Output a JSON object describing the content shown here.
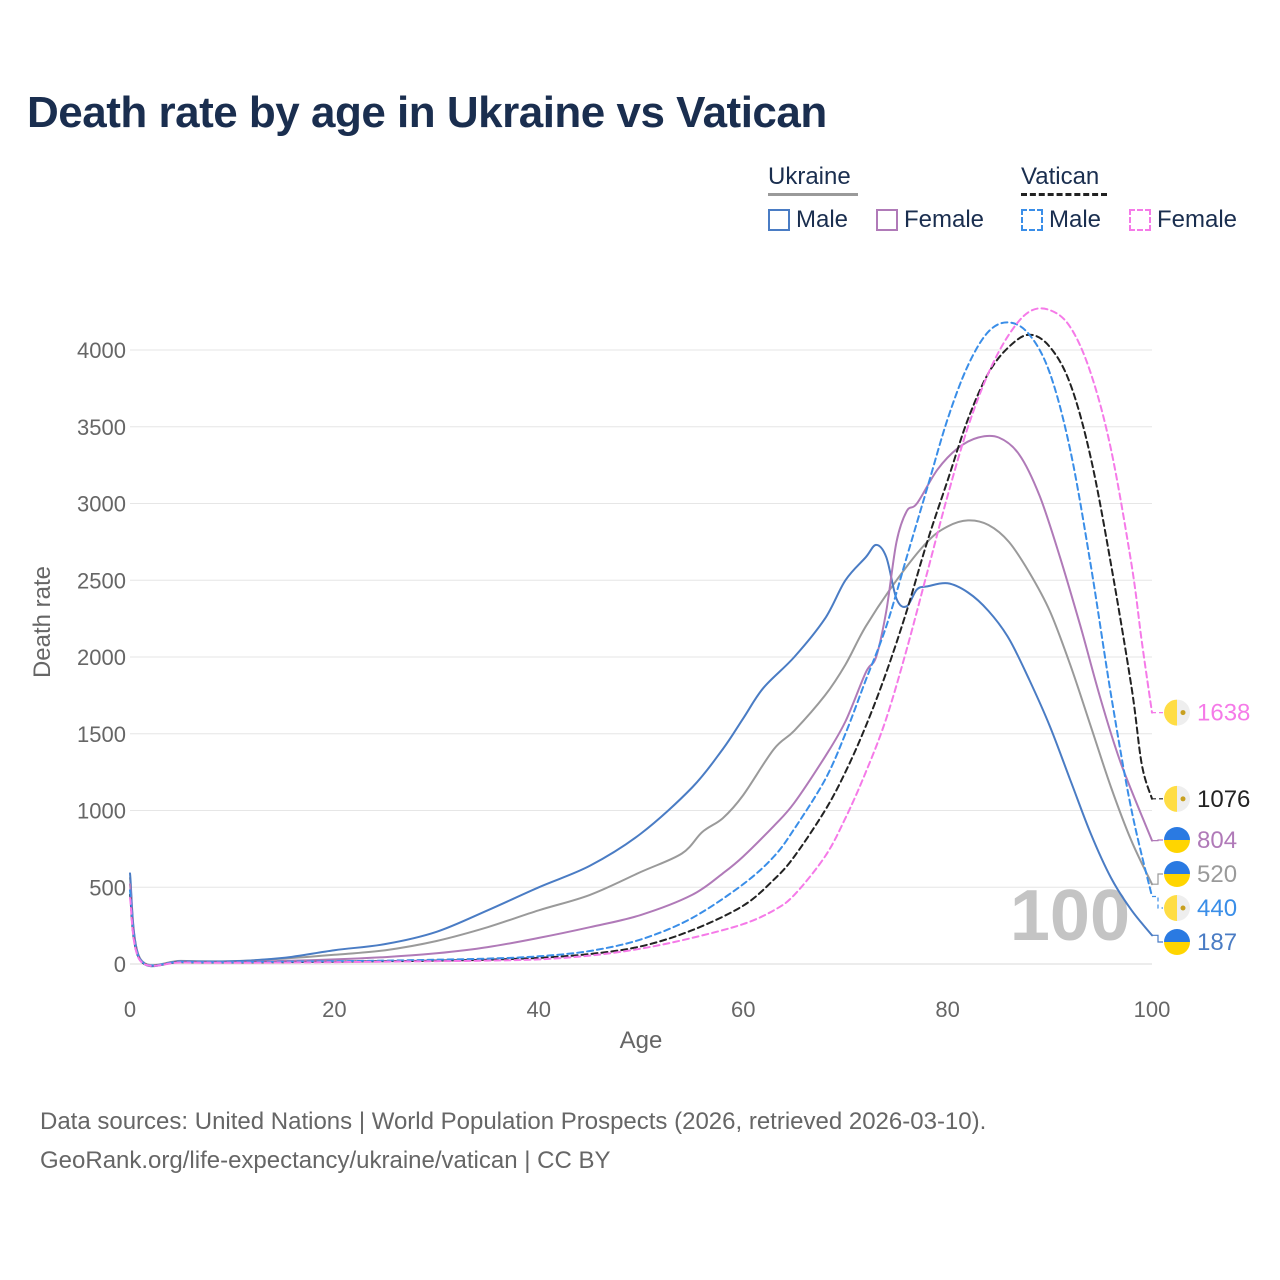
{
  "title": "Death rate by age in Ukraine vs Vatican",
  "legend": {
    "groups": [
      {
        "name": "Ukraine",
        "items": [
          {
            "label": "Male",
            "series": "ua_male"
          },
          {
            "label": "Female",
            "series": "ua_female"
          }
        ]
      },
      {
        "name": "Vatican",
        "items": [
          {
            "label": "Male",
            "series": "va_male"
          },
          {
            "label": "Female",
            "series": "va_female"
          }
        ]
      }
    ]
  },
  "colors": {
    "ua_male": "#4a7cc4",
    "ua_female": "#b07ab8",
    "ua_total": "#9a9a9a",
    "va_male": "#3a8ee8",
    "va_female": "#f57ae8",
    "va_total": "#222222",
    "title": "#1a2e4f",
    "axis_text": "#666666",
    "grid": "#e6e6e6",
    "flag_ukraine_top": "#2a7ae2",
    "flag_ukraine_bottom": "#ffd500",
    "flag_vatican_left": "#ffdd44",
    "flag_vatican_right": "#eeeeee"
  },
  "chart_data": {
    "type": "line",
    "title": "Death rate by age in Ukraine vs Vatican",
    "xlabel": "Age",
    "ylabel": "Death rate",
    "xlim": [
      0,
      100
    ],
    "ylim": [
      0,
      4000
    ],
    "x_ticks": [
      0,
      20,
      40,
      60,
      80,
      100
    ],
    "y_ticks": [
      0,
      500,
      1000,
      1500,
      2000,
      2500,
      3000,
      3500,
      4000
    ],
    "annotation": "100",
    "series": [
      {
        "id": "ua_total",
        "name": "Ukraine (total)",
        "style": "solid",
        "points": [
          [
            0,
            560
          ],
          [
            1,
            35
          ],
          [
            5,
            20
          ],
          [
            10,
            18
          ],
          [
            15,
            35
          ],
          [
            20,
            60
          ],
          [
            25,
            90
          ],
          [
            30,
            150
          ],
          [
            35,
            240
          ],
          [
            40,
            350
          ],
          [
            45,
            450
          ],
          [
            50,
            600
          ],
          [
            54,
            720
          ],
          [
            56,
            860
          ],
          [
            58,
            950
          ],
          [
            60,
            1100
          ],
          [
            63,
            1400
          ],
          [
            65,
            1520
          ],
          [
            68,
            1750
          ],
          [
            70,
            1950
          ],
          [
            72,
            2200
          ],
          [
            75,
            2500
          ],
          [
            78,
            2750
          ],
          [
            80,
            2850
          ],
          [
            82,
            2890
          ],
          [
            84,
            2860
          ],
          [
            86,
            2750
          ],
          [
            88,
            2550
          ],
          [
            90,
            2300
          ],
          [
            92,
            1950
          ],
          [
            94,
            1550
          ],
          [
            96,
            1150
          ],
          [
            98,
            800
          ],
          [
            100,
            520
          ]
        ],
        "end_label": "520",
        "end_flag": "ukraine"
      },
      {
        "id": "ua_male",
        "name": "Ukraine Male",
        "style": "solid",
        "points": [
          [
            0,
            590
          ],
          [
            1,
            30
          ],
          [
            5,
            18
          ],
          [
            10,
            18
          ],
          [
            15,
            40
          ],
          [
            20,
            90
          ],
          [
            25,
            130
          ],
          [
            30,
            210
          ],
          [
            35,
            350
          ],
          [
            40,
            500
          ],
          [
            45,
            640
          ],
          [
            50,
            850
          ],
          [
            55,
            1150
          ],
          [
            58,
            1400
          ],
          [
            60,
            1600
          ],
          [
            62,
            1800
          ],
          [
            65,
            2000
          ],
          [
            68,
            2250
          ],
          [
            70,
            2500
          ],
          [
            72,
            2650
          ],
          [
            73,
            2730
          ],
          [
            74,
            2650
          ],
          [
            75,
            2380
          ],
          [
            76,
            2330
          ],
          [
            77,
            2440
          ],
          [
            78,
            2460
          ],
          [
            80,
            2480
          ],
          [
            82,
            2420
          ],
          [
            84,
            2300
          ],
          [
            86,
            2120
          ],
          [
            88,
            1850
          ],
          [
            90,
            1550
          ],
          [
            92,
            1200
          ],
          [
            94,
            850
          ],
          [
            96,
            560
          ],
          [
            98,
            350
          ],
          [
            100,
            187
          ]
        ],
        "end_label": "187",
        "end_flag": "ukraine"
      },
      {
        "id": "ua_female",
        "name": "Ukraine Female",
        "style": "solid",
        "points": [
          [
            0,
            520
          ],
          [
            1,
            28
          ],
          [
            5,
            15
          ],
          [
            10,
            12
          ],
          [
            15,
            20
          ],
          [
            20,
            30
          ],
          [
            25,
            45
          ],
          [
            30,
            70
          ],
          [
            35,
            110
          ],
          [
            40,
            170
          ],
          [
            45,
            240
          ],
          [
            50,
            320
          ],
          [
            55,
            450
          ],
          [
            58,
            590
          ],
          [
            60,
            700
          ],
          [
            63,
            900
          ],
          [
            65,
            1050
          ],
          [
            68,
            1350
          ],
          [
            70,
            1580
          ],
          [
            72,
            1900
          ],
          [
            73,
            2000
          ],
          [
            74,
            2300
          ],
          [
            75,
            2750
          ],
          [
            76,
            2950
          ],
          [
            77,
            3000
          ],
          [
            79,
            3220
          ],
          [
            81,
            3360
          ],
          [
            83,
            3430
          ],
          [
            85,
            3430
          ],
          [
            87,
            3320
          ],
          [
            89,
            3050
          ],
          [
            91,
            2650
          ],
          [
            93,
            2200
          ],
          [
            95,
            1720
          ],
          [
            97,
            1300
          ],
          [
            100,
            804
          ]
        ],
        "end_label": "804",
        "end_flag": "ukraine"
      },
      {
        "id": "va_total",
        "name": "Vatican (total)",
        "style": "dashed",
        "points": [
          [
            0,
            450
          ],
          [
            1,
            25
          ],
          [
            5,
            12
          ],
          [
            10,
            10
          ],
          [
            15,
            12
          ],
          [
            20,
            15
          ],
          [
            25,
            18
          ],
          [
            30,
            22
          ],
          [
            35,
            28
          ],
          [
            40,
            40
          ],
          [
            45,
            65
          ],
          [
            50,
            115
          ],
          [
            55,
            220
          ],
          [
            60,
            380
          ],
          [
            63,
            550
          ],
          [
            65,
            700
          ],
          [
            68,
            1000
          ],
          [
            70,
            1250
          ],
          [
            72,
            1550
          ],
          [
            74,
            1900
          ],
          [
            76,
            2300
          ],
          [
            78,
            2750
          ],
          [
            80,
            3150
          ],
          [
            82,
            3550
          ],
          [
            84,
            3850
          ],
          [
            86,
            4020
          ],
          [
            88,
            4100
          ],
          [
            90,
            4020
          ],
          [
            92,
            3780
          ],
          [
            94,
            3300
          ],
          [
            96,
            2600
          ],
          [
            98,
            1800
          ],
          [
            99,
            1300
          ],
          [
            100,
            1076
          ]
        ],
        "end_label": "1076",
        "end_flag": "vatican"
      },
      {
        "id": "va_male",
        "name": "Vatican Male",
        "style": "dashed",
        "points": [
          [
            0,
            480
          ],
          [
            1,
            28
          ],
          [
            5,
            14
          ],
          [
            10,
            12
          ],
          [
            15,
            15
          ],
          [
            20,
            18
          ],
          [
            25,
            22
          ],
          [
            30,
            28
          ],
          [
            35,
            35
          ],
          [
            40,
            50
          ],
          [
            45,
            85
          ],
          [
            50,
            160
          ],
          [
            55,
            300
          ],
          [
            60,
            520
          ],
          [
            63,
            700
          ],
          [
            65,
            880
          ],
          [
            68,
            1200
          ],
          [
            70,
            1500
          ],
          [
            72,
            1850
          ],
          [
            74,
            2200
          ],
          [
            76,
            2650
          ],
          [
            78,
            3100
          ],
          [
            80,
            3550
          ],
          [
            82,
            3900
          ],
          [
            84,
            4120
          ],
          [
            86,
            4180
          ],
          [
            88,
            4100
          ],
          [
            90,
            3850
          ],
          [
            92,
            3350
          ],
          [
            94,
            2600
          ],
          [
            96,
            1750
          ],
          [
            98,
            1000
          ],
          [
            100,
            440
          ]
        ],
        "end_label": "440",
        "end_flag": "vatican"
      },
      {
        "id": "va_female",
        "name": "Vatican Female",
        "style": "dashed",
        "points": [
          [
            0,
            430
          ],
          [
            1,
            22
          ],
          [
            5,
            10
          ],
          [
            10,
            8
          ],
          [
            15,
            10
          ],
          [
            20,
            12
          ],
          [
            25,
            15
          ],
          [
            30,
            18
          ],
          [
            35,
            22
          ],
          [
            40,
            30
          ],
          [
            45,
            55
          ],
          [
            50,
            100
          ],
          [
            55,
            170
          ],
          [
            60,
            260
          ],
          [
            63,
            350
          ],
          [
            65,
            450
          ],
          [
            68,
            700
          ],
          [
            70,
            950
          ],
          [
            72,
            1250
          ],
          [
            74,
            1600
          ],
          [
            76,
            2050
          ],
          [
            78,
            2550
          ],
          [
            80,
            3050
          ],
          [
            82,
            3500
          ],
          [
            84,
            3850
          ],
          [
            86,
            4100
          ],
          [
            88,
            4250
          ],
          [
            90,
            4260
          ],
          [
            92,
            4150
          ],
          [
            94,
            3850
          ],
          [
            96,
            3350
          ],
          [
            98,
            2600
          ],
          [
            99,
            2100
          ],
          [
            100,
            1638
          ]
        ],
        "end_label": "1638",
        "end_flag": "vatican"
      }
    ]
  },
  "footer": {
    "line1": "Data sources: United Nations | World Population Prospects (2026, retrieved 2026-03-10).",
    "line2": "GeoRank.org/life-expectancy/ukraine/vatican | CC BY"
  }
}
